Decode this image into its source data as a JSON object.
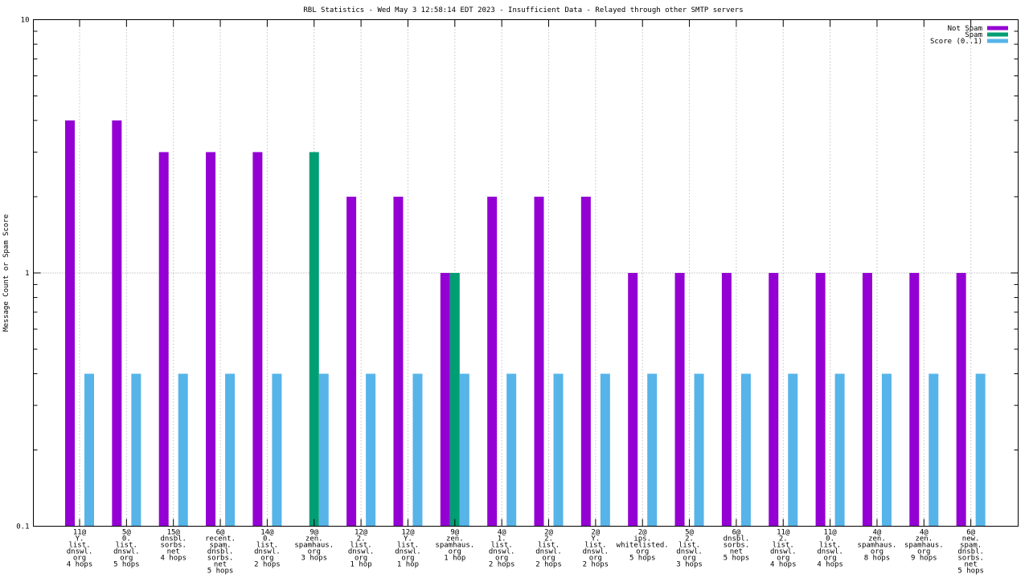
{
  "chart_data": {
    "type": "bar",
    "title": "RBL Statistics - Wed May  3 12:58:14 EDT 2023 - Insufficient Data - Relayed through other SMTP servers",
    "xlabel": "",
    "ylabel": "Message Count or Spam Score",
    "yscale": "log",
    "ylim": [
      0.1,
      10
    ],
    "yticks": [
      "0.1",
      "1",
      "10"
    ],
    "grid": true,
    "legend_position": "top-right",
    "categories": [
      [
        "11@",
        "Y.",
        "list.",
        "dnswl.",
        "org",
        "4 hops"
      ],
      [
        "5@",
        "0.",
        "list.",
        "dnswl.",
        "org",
        "5 hops"
      ],
      [
        "15@",
        "dnsbl.",
        "sorbs.",
        "net",
        "4 hops"
      ],
      [
        "6@",
        "recent.",
        "spam.",
        "dnsbl.",
        "sorbs.",
        "net",
        "5 hops"
      ],
      [
        "14@",
        "0.",
        "list.",
        "dnswl.",
        "org",
        "2 hops"
      ],
      [
        "9@",
        "zen.",
        "spamhaus.",
        "org",
        "3 hops"
      ],
      [
        "12@",
        "2.",
        "list.",
        "dnswl.",
        "org",
        "1 hop"
      ],
      [
        "12@",
        "Y.",
        "list.",
        "dnswl.",
        "org",
        "1 hop"
      ],
      [
        "9@",
        "zen.",
        "spamhaus.",
        "org",
        "1 hop"
      ],
      [
        "4@",
        "1.",
        "list.",
        "dnswl.",
        "org",
        "2 hops"
      ],
      [
        "2@",
        "2.",
        "list.",
        "dnswl.",
        "org",
        "2 hops"
      ],
      [
        "2@",
        "Y.",
        "list.",
        "dnswl.",
        "org",
        "2 hops"
      ],
      [
        "2@",
        "ips.",
        "whitelisted.",
        "org",
        "5 hops"
      ],
      [
        "5@",
        "2.",
        "list.",
        "dnswl.",
        "org",
        "3 hops"
      ],
      [
        "6@",
        "dnsbl.",
        "sorbs.",
        "net",
        "5 hops"
      ],
      [
        "11@",
        "2.",
        "list.",
        "dnswl.",
        "org",
        "4 hops"
      ],
      [
        "11@",
        "0.",
        "list.",
        "dnswl.",
        "org",
        "4 hops"
      ],
      [
        "4@",
        "zen.",
        "spamhaus.",
        "org",
        "8 hops"
      ],
      [
        "4@",
        "zen.",
        "spamhaus.",
        "org",
        "9 hops"
      ],
      [
        "6@",
        "new.",
        "spam.",
        "dnsbl.",
        "sorbs.",
        "net",
        "5 hops"
      ]
    ],
    "series": [
      {
        "name": "Not Spam",
        "color": "#9400d3",
        "values": [
          4,
          4,
          3,
          3,
          3,
          0,
          2,
          2,
          1,
          2,
          2,
          2,
          1,
          1,
          1,
          1,
          1,
          1,
          1,
          1
        ]
      },
      {
        "name": "Spam",
        "color": "#009e73",
        "values": [
          0,
          0,
          0,
          0,
          0,
          3,
          0,
          0,
          1,
          0,
          0,
          0,
          0,
          0,
          0,
          0,
          0,
          0,
          0,
          0
        ]
      },
      {
        "name": "Score (0..1)",
        "color": "#56b4e9",
        "values": [
          0.4,
          0.4,
          0.4,
          0.4,
          0.4,
          0.4,
          0.4,
          0.4,
          0.4,
          0.4,
          0.4,
          0.4,
          0.4,
          0.4,
          0.4,
          0.4,
          0.4,
          0.4,
          0.4,
          0.4
        ]
      }
    ]
  }
}
